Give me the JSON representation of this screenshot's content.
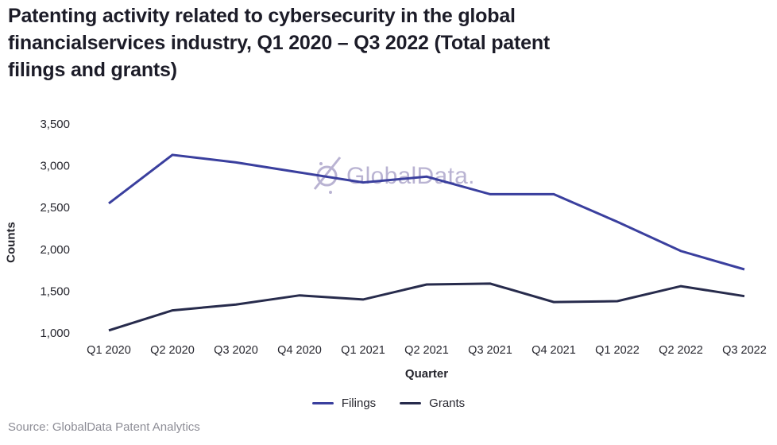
{
  "title": "Patenting activity related to cybersecurity in the global\nfinancialservices industry, Q1 2020 – Q3 2022 (Total patent\nfilings and grants)",
  "watermark": {
    "text": "GlobalData."
  },
  "source": "Source: GlobalData Patent Analytics",
  "colors": {
    "filings": "#3a3f9e",
    "grants": "#272b4c",
    "axis_text": "#26262e",
    "title_text": "#1c1c28",
    "watermark": "#b2abce",
    "source_text": "#8d8d96"
  },
  "chart_data": {
    "type": "line",
    "title": "Patenting activity related to cybersecurity in the global financialservices industry, Q1 2020 – Q3 2022 (Total patent filings and grants)",
    "xlabel": "Quarter",
    "ylabel": "Counts",
    "categories": [
      "Q1 2020",
      "Q2 2020",
      "Q3 2020",
      "Q4 2020",
      "Q1 2021",
      "Q2 2021",
      "Q3 2021",
      "Q4 2021",
      "Q1 2022",
      "Q2 2022",
      "Q3 2022"
    ],
    "series": [
      {
        "name": "Filings",
        "color": "#3a3f9e",
        "values": [
          2550,
          3130,
          3040,
          2920,
          2800,
          2870,
          2660,
          2660,
          2330,
          1980,
          1760
        ]
      },
      {
        "name": "Grants",
        "color": "#272b4c",
        "values": [
          1030,
          1270,
          1340,
          1450,
          1400,
          1580,
          1590,
          1370,
          1380,
          1560,
          1440
        ]
      }
    ],
    "ylim": [
      1000,
      3500
    ],
    "yticks": [
      1000,
      1500,
      2000,
      2500,
      3000,
      3500
    ],
    "ytick_labels": [
      "1,000",
      "1,500",
      "2,000",
      "2,500",
      "3,000",
      "3,500"
    ],
    "grid": false,
    "legend_position": "bottom"
  }
}
